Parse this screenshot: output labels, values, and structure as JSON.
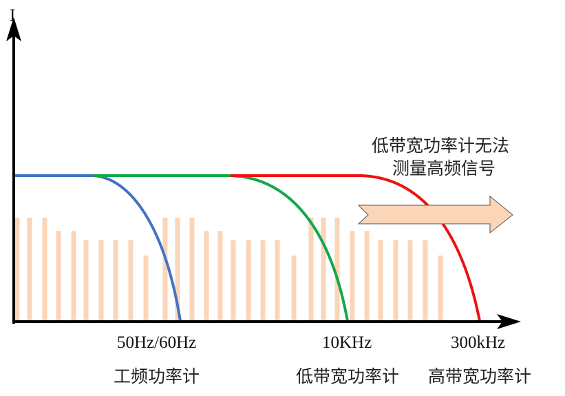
{
  "axes": {
    "y_label": "I"
  },
  "colors": {
    "power_frequency_curve": "#4472c4",
    "low_bandwidth_curve": "#12a84a",
    "high_bandwidth_curve": "#ee1111",
    "harmonic_bars": "#fbd5b8",
    "arrow_fill": "#fbd5b8",
    "arrow_stroke": "#555555",
    "axis": "#000000"
  },
  "harmonic_bar_levels": [
    1.0,
    1.0,
    1.0,
    0.87,
    0.87,
    0.78,
    0.78,
    0.78,
    0.78,
    0.63,
    1.0,
    1.0,
    1.0,
    0.87,
    0.87,
    0.78,
    0.78,
    0.78,
    0.78,
    0.63,
    1.0,
    1.0,
    1.0,
    0.87,
    0.87,
    0.78,
    0.78,
    0.78,
    0.78,
    0.63
  ],
  "annotation": {
    "line1": "低带宽功率计无法",
    "line2": "测量高频信号"
  },
  "labels": [
    {
      "frequency": "50Hz/60Hz",
      "meter": "工频功率计"
    },
    {
      "frequency": "10KHz",
      "meter": "低带宽功率计"
    },
    {
      "frequency": "300kHz",
      "meter": "高带宽功率计"
    }
  ]
}
